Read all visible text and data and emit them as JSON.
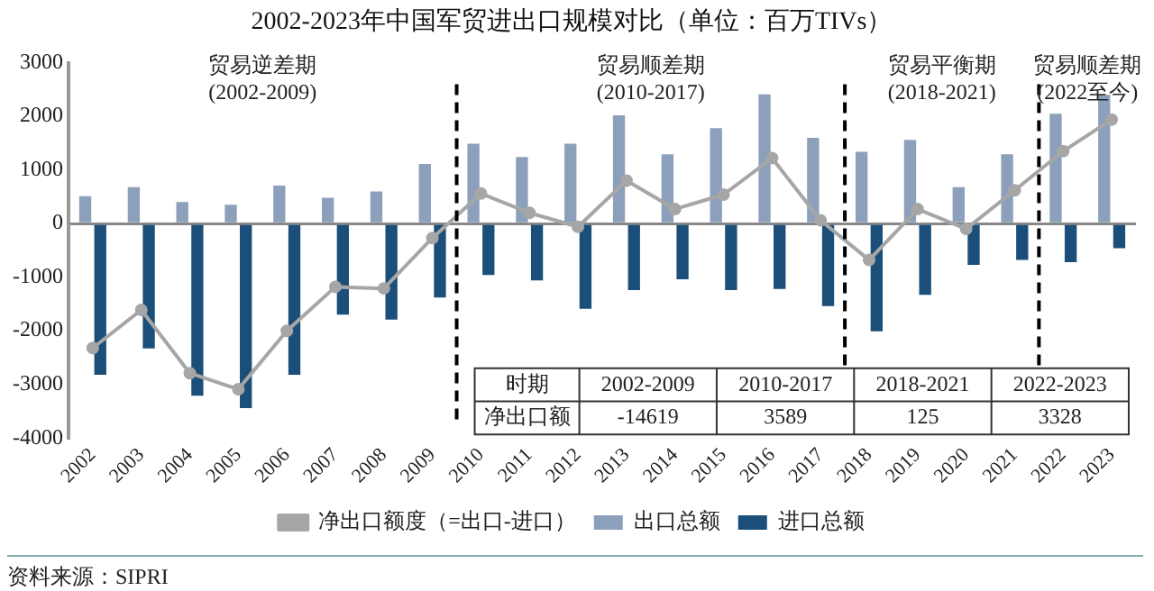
{
  "chart_data": {
    "type": "bar",
    "title": "2002-2023年中国军贸进出口规模对比（单位：百万TIVs）",
    "categories": [
      "2002",
      "2003",
      "2004",
      "2005",
      "2006",
      "2007",
      "2008",
      "2009",
      "2010",
      "2011",
      "2012",
      "2013",
      "2014",
      "2015",
      "2016",
      "2017",
      "2018",
      "2019",
      "2020",
      "2021",
      "2022",
      "2023"
    ],
    "series": [
      {
        "name": "出口总额",
        "color": "#8da0bb",
        "values": [
          510,
          680,
          400,
          350,
          710,
          480,
          600,
          1110,
          1490,
          1240,
          1490,
          2020,
          1290,
          1780,
          2410,
          1600,
          1340,
          1560,
          680,
          1290,
          2050,
          2400
        ]
      },
      {
        "name": "进口总额",
        "color": "#1b4f7a",
        "values": [
          -2820,
          -2330,
          -3210,
          -3440,
          -2820,
          -1700,
          -1790,
          -1380,
          -960,
          -1060,
          -1590,
          -1240,
          -1040,
          -1240,
          -1220,
          -1540,
          -2010,
          -1330,
          -770,
          -680,
          -720,
          -460
        ]
      },
      {
        "name": "净出口额度（=出口-进口）",
        "type": "line",
        "color": "#a6a6a6",
        "values": [
          -2320,
          -1610,
          -2790,
          -3090,
          -2000,
          -1180,
          -1210,
          -270,
          560,
          200,
          -60,
          800,
          270,
          540,
          1220,
          60,
          -680,
          270,
          -100,
          620,
          1350,
          1940
        ]
      }
    ],
    "ylim": [
      -4000,
      3000
    ],
    "yticks": [
      -4000,
      -3000,
      -2000,
      -1000,
      0,
      1000,
      2000,
      3000
    ],
    "marker": "circle",
    "legend": "bottom",
    "ref_lines": [
      {
        "axis": "x",
        "value": "2010",
        "color": "#000000",
        "line_style": "dashed"
      },
      {
        "axis": "x",
        "value": "2018",
        "color": "#000000",
        "line_style": "dashed"
      },
      {
        "axis": "x",
        "value": "2022",
        "color": "#000000",
        "line_style": "dashed"
      }
    ],
    "annotations": [
      "贸易逆差期",
      "(2002-2009)",
      "贸易顺差期",
      "(2010-2017)",
      "贸易平衡期",
      "(2018-2021)",
      "贸易顺差期",
      "(2022至今)",
      "时期",
      "2002-2009",
      "2010-2017",
      "2018-2021",
      "2022-2023",
      "净出口额",
      "-14619",
      "3589",
      "125",
      "3328",
      "资料来源：SIPRI"
    ]
  }
}
